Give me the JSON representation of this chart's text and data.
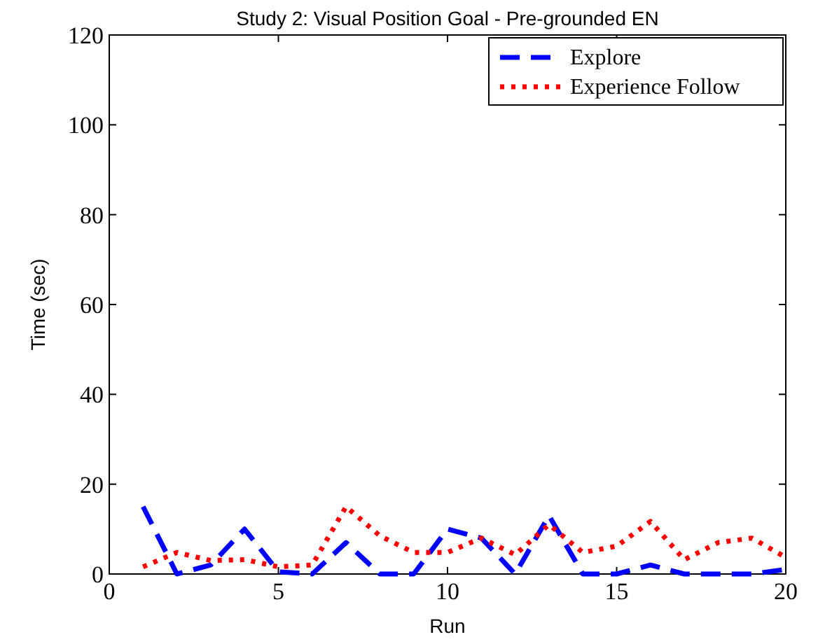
{
  "chart_data": {
    "type": "line",
    "title": "Study 2: Visual Position Goal - Pre-grounded EN",
    "xlabel": "Run",
    "ylabel": "Time (sec)",
    "x": [
      1,
      2,
      3,
      4,
      5,
      6,
      7,
      8,
      9,
      10,
      11,
      12,
      13,
      14,
      15,
      16,
      17,
      18,
      19,
      20
    ],
    "series": [
      {
        "name": "Explore",
        "color": "#0000ff",
        "line_style": "dashed",
        "values": [
          15,
          0,
          2,
          10,
          0.5,
          0,
          7,
          0,
          0,
          10,
          8,
          0,
          13,
          0,
          0,
          2,
          0,
          0,
          0,
          1
        ]
      },
      {
        "name": "Experience Follow",
        "color": "#ff0000",
        "line_style": "dotted",
        "values": [
          1.6,
          4.8,
          3,
          3.2,
          1.6,
          2,
          15,
          8.5,
          4.8,
          4.8,
          8,
          4.3,
          11,
          4.8,
          6.2,
          11.7,
          3.2,
          7,
          8,
          3.7
        ]
      }
    ],
    "xlim": [
      0,
      20
    ],
    "xticks": [
      0,
      5,
      10,
      15,
      20
    ],
    "ylim": [
      0,
      120
    ],
    "yticks": [
      0,
      20,
      40,
      60,
      80,
      100,
      120
    ],
    "grid": false,
    "legend": "top right",
    "marker": "none"
  }
}
